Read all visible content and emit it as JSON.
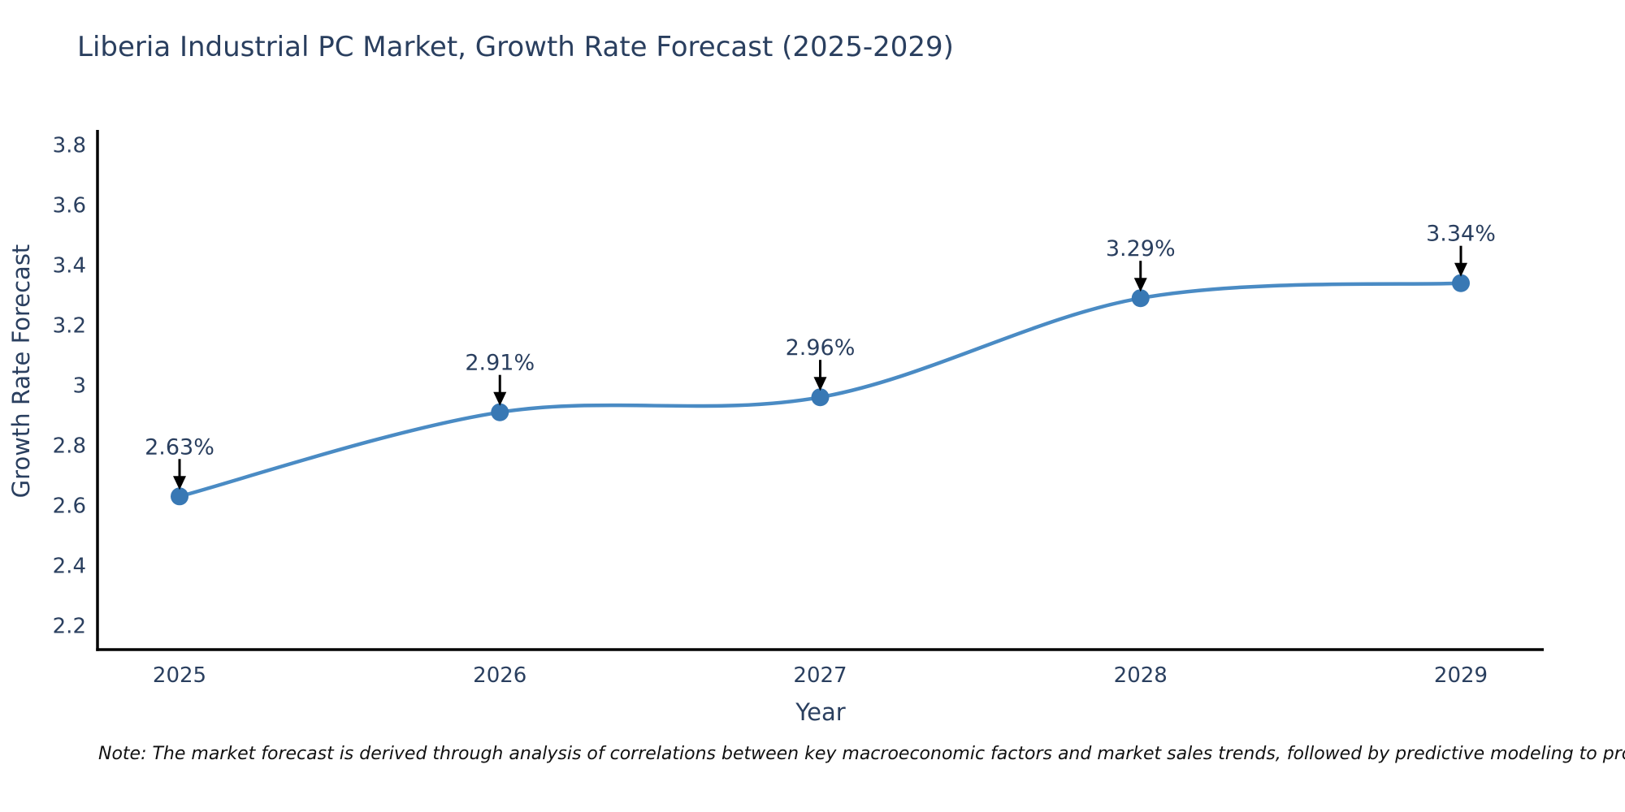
{
  "title": "Liberia Industrial PC Market, Growth Rate Forecast (2025-2029)",
  "note": "Note: The market forecast is derived through analysis of correlations between key macroeconomic factors and market sales trends, followed by predictive modeling to project future sales",
  "chart_data": {
    "type": "line",
    "title": "Liberia Industrial PC Market, Growth Rate Forecast (2025-2029)",
    "xlabel": "Year",
    "ylabel": "Growth Rate Forecast",
    "categories": [
      "2025",
      "2026",
      "2027",
      "2028",
      "2029"
    ],
    "values": [
      2.63,
      2.91,
      2.96,
      3.29,
      3.34
    ],
    "point_labels": [
      "2.63%",
      "2.91%",
      "2.96%",
      "3.29%",
      "3.34%"
    ],
    "ytick_values": [
      3.8,
      3.6,
      3.4,
      3.2,
      3.0,
      2.8,
      2.6,
      2.4,
      2.2
    ],
    "ytick_labels": [
      "3.8",
      "3.6",
      "3.4",
      "3.2",
      "3",
      "2.8",
      "2.6",
      "2.4",
      "2.2"
    ],
    "ylim": [
      2.12,
      3.85
    ],
    "grid": false,
    "legend_position": "none",
    "line_shape": "spline",
    "colors": {
      "line": "#4a8bc4",
      "marker": "#3878b4",
      "axis": "#000000",
      "tick_text": "#2a3f5f",
      "annotation_text": "#2a3f5f",
      "arrow": "#000000",
      "background": "#ffffff"
    }
  }
}
